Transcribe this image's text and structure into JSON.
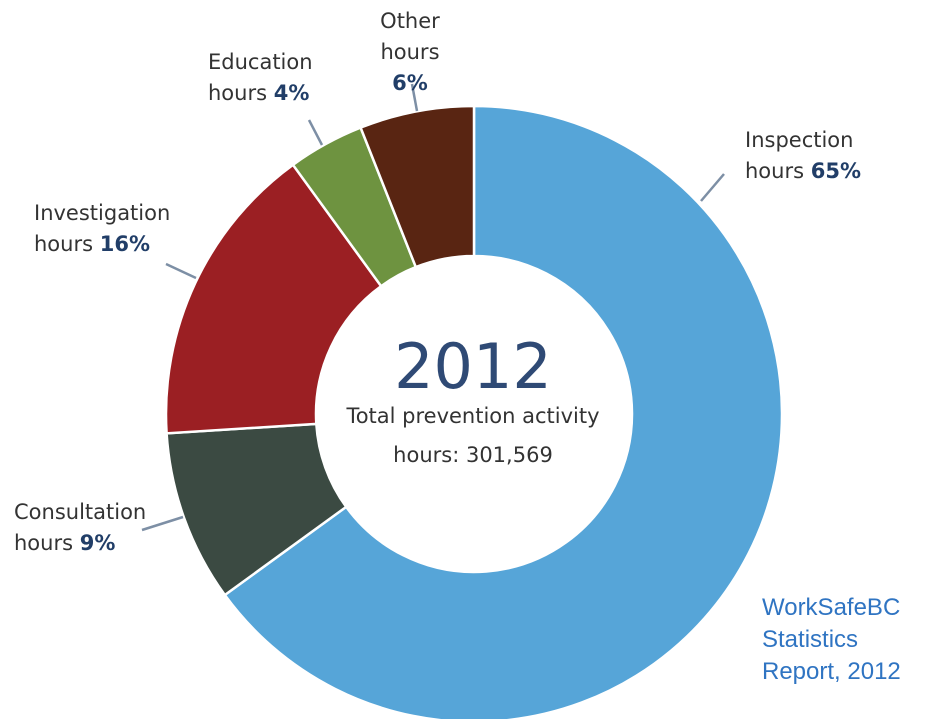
{
  "chart_data": {
    "type": "pie",
    "center_title": "2012",
    "center_subtitle_1": "Total prevention activity",
    "center_subtitle_2": "hours: 301,569",
    "slices": [
      {
        "name": "Inspection hours",
        "line1": "Inspection",
        "line2": "hours",
        "pct_label": "65%",
        "value": 65,
        "color": "#56a5d8"
      },
      {
        "name": "Consultation hours",
        "line1": "Consultation",
        "line2": "hours",
        "pct_label": "9%",
        "value": 9,
        "color": "#3b4a42"
      },
      {
        "name": "Investigation hours",
        "line1": "Investigation",
        "line2": "hours",
        "pct_label": "16%",
        "value": 16,
        "color": "#9b1f23"
      },
      {
        "name": "Education hours",
        "line1": "Education",
        "line2": "hours",
        "pct_label": "4%",
        "value": 4,
        "color": "#6e9340"
      },
      {
        "name": "Other hours",
        "line1": "Other hours",
        "line2": "",
        "pct_label": "6%",
        "value": 6,
        "color": "#592512"
      }
    ],
    "source": [
      "WorkSafeBC",
      "Statistics",
      "Report, 2012"
    ]
  }
}
